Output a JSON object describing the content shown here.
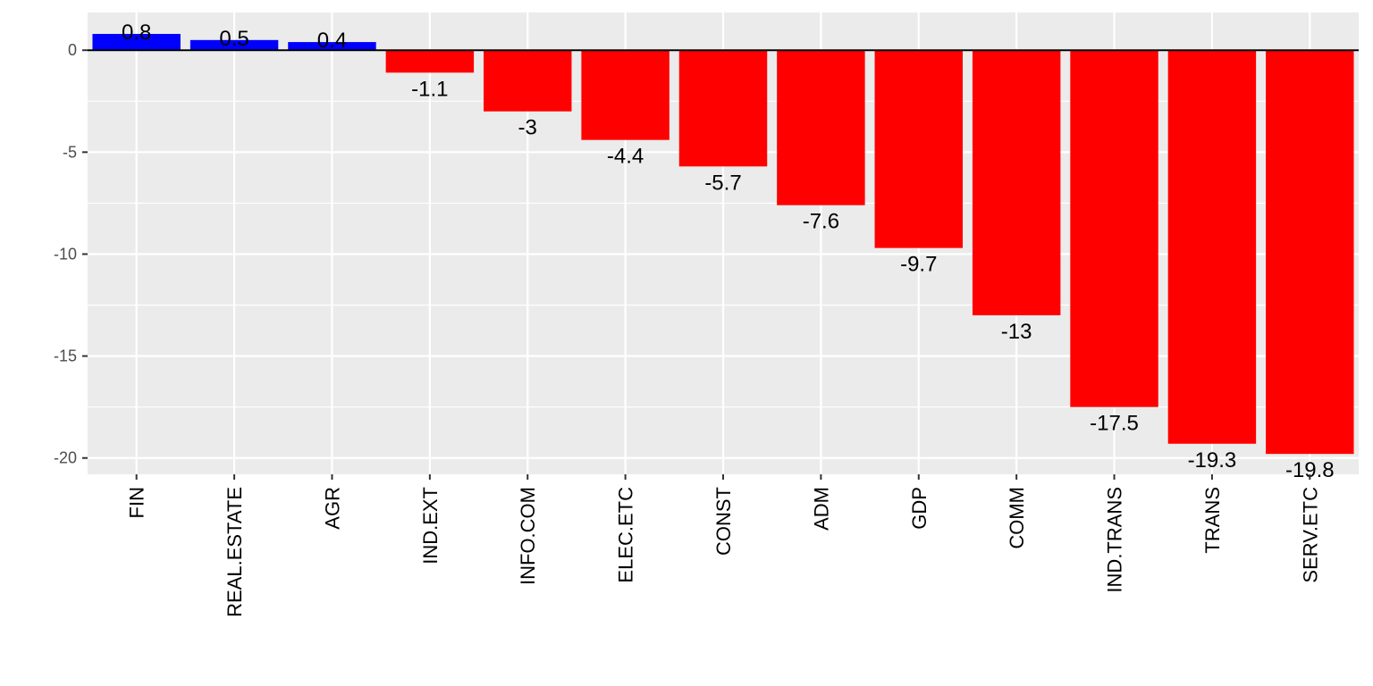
{
  "chart_data": {
    "type": "bar",
    "title": "",
    "xlabel": "",
    "ylabel": "",
    "categories": [
      "FIN",
      "REAL.ESTATE",
      "AGR",
      "IND.EXT",
      "INFO.COM",
      "ELEC.ETC",
      "CONST",
      "ADM",
      "GDP",
      "COMM",
      "IND.TRANS",
      "TRANS",
      "SERV.ETC"
    ],
    "values": [
      0.8,
      0.5,
      0.4,
      -1.1,
      -3,
      -4.4,
      -5.7,
      -7.6,
      -9.7,
      -13,
      -17.5,
      -19.3,
      -19.8
    ],
    "data_labels": [
      "0.8",
      "0.5",
      "0.4",
      "-1.1",
      "-3",
      "-4.4",
      "-5.7",
      "-7.6",
      "-9.7",
      "-13",
      "-17.5",
      "-19.3",
      "-19.8"
    ],
    "ylim": [
      -20.8,
      1.85
    ],
    "yticks": [
      0,
      -5,
      -10,
      -15,
      -20
    ],
    "ytick_labels": [
      "0",
      "-5",
      "-10",
      "-15",
      "-20"
    ],
    "grid": true,
    "legend": "none",
    "colors": {
      "positive": "#0000ff",
      "negative": "#ff0000",
      "panel": "#ebebeb",
      "grid": "#ffffff",
      "zero_line": "#000000"
    }
  }
}
